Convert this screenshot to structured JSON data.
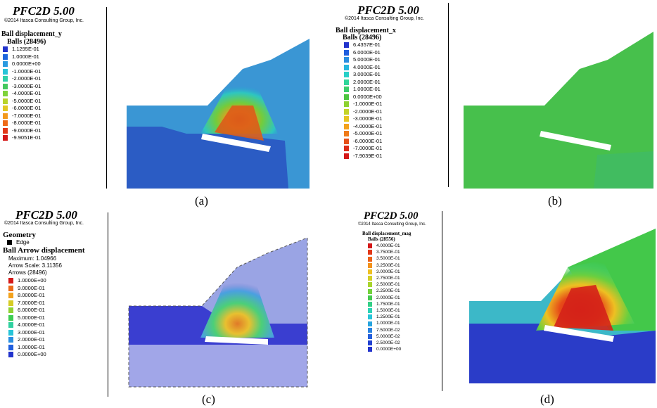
{
  "panels": [
    {
      "caption": "(a)",
      "software_title": "PFC2D 5.00",
      "copyright": "©2014 Itasca Consulting Group, Inc.",
      "variable": "Ball displacement_y",
      "count_label": "Balls (28496)",
      "legend": [
        {
          "label": "1.1295E-01",
          "color": "#2233cc"
        },
        {
          "label": "1.0000E-01",
          "color": "#1f66dd"
        },
        {
          "label": "0.0000E+00",
          "color": "#2a9ae0"
        },
        {
          "label": "-1.0000E-01",
          "color": "#27c4d8"
        },
        {
          "label": "-2.0000E-01",
          "color": "#2fd0a8"
        },
        {
          "label": "-3.0000E-01",
          "color": "#43c85e"
        },
        {
          "label": "-4.0000E-01",
          "color": "#7ed23a"
        },
        {
          "label": "-5.0000E-01",
          "color": "#b8d42b"
        },
        {
          "label": "-6.0000E-01",
          "color": "#e2c822"
        },
        {
          "label": "-7.0000E-01",
          "color": "#f39a1c"
        },
        {
          "label": "-8.0000E-01",
          "color": "#ef6a18"
        },
        {
          "label": "-9.0000E-01",
          "color": "#e23818"
        },
        {
          "label": "-9.9051E-01",
          "color": "#d41818"
        }
      ]
    },
    {
      "caption": "(b)",
      "software_title": "PFC2D 5.00",
      "copyright": "©2014 Itasca Consulting Group, Inc.",
      "variable": "Ball displacement_x",
      "count_label": "Balls (28496)",
      "legend": [
        {
          "label": "6.4357E-01",
          "color": "#2233cc"
        },
        {
          "label": "6.0000E-01",
          "color": "#1f5ede"
        },
        {
          "label": "5.0000E-01",
          "color": "#2a8ee0"
        },
        {
          "label": "4.0000E-01",
          "color": "#26b6de"
        },
        {
          "label": "3.0000E-01",
          "color": "#27d0c8"
        },
        {
          "label": "2.0000E-01",
          "color": "#2fd69a"
        },
        {
          "label": "1.0000E-01",
          "color": "#3ccd6a"
        },
        {
          "label": "0.0000E+00",
          "color": "#4cc640"
        },
        {
          "label": "-1.0000E-01",
          "color": "#8ed232"
        },
        {
          "label": "-2.0000E-01",
          "color": "#c4d428"
        },
        {
          "label": "-3.0000E-01",
          "color": "#e6c522"
        },
        {
          "label": "-4.0000E-01",
          "color": "#f3a21c"
        },
        {
          "label": "-5.0000E-01",
          "color": "#ef7a18"
        },
        {
          "label": "-6.0000E-01",
          "color": "#e65018"
        },
        {
          "label": "-7.0000E-01",
          "color": "#dc2c18"
        },
        {
          "label": "-7.9039E-01",
          "color": "#d41818"
        }
      ]
    },
    {
      "caption": "(c)",
      "software_title": "PFC2D 5.00",
      "copyright": "©2014 Itasca Consulting Group, Inc.",
      "geometry_label": "Geometry",
      "edge_label": "Edge",
      "variable": "Ball Arrow displacement",
      "maximum": "Maximum: 1.04966",
      "arrow_scale": "Arrow Scale: 3.11356",
      "count_label": "Arrows (28496)",
      "legend": [
        {
          "label": "1.0000E+00",
          "color": "#d41818"
        },
        {
          "label": "9.0000E-01",
          "color": "#ec6a18"
        },
        {
          "label": "8.0000E-01",
          "color": "#f3a21c"
        },
        {
          "label": "7.0000E-01",
          "color": "#d6cc24"
        },
        {
          "label": "6.0000E-01",
          "color": "#8ed232"
        },
        {
          "label": "5.0000E-01",
          "color": "#3ccd52"
        },
        {
          "label": "4.0000E-01",
          "color": "#2fd0a0"
        },
        {
          "label": "3.0000E-01",
          "color": "#27c4d8"
        },
        {
          "label": "2.0000E-01",
          "color": "#2a8ee0"
        },
        {
          "label": "1.0000E-01",
          "color": "#1f5ede"
        },
        {
          "label": "0.0000E+00",
          "color": "#2233cc"
        }
      ]
    },
    {
      "caption": "(d)",
      "software_title": "PFC2D 5.00",
      "copyright": "©2014 Itasca Consulting Group, Inc.",
      "variable": "Ball displacement_mag",
      "count_label": "Balls (28556)",
      "legend": [
        {
          "label": "4.0000E-01",
          "color": "#d41818"
        },
        {
          "label": "3.7500E-01",
          "color": "#e23818"
        },
        {
          "label": "3.5000E-01",
          "color": "#ec6218"
        },
        {
          "label": "3.2500E-01",
          "color": "#f3921c"
        },
        {
          "label": "3.0000E-01",
          "color": "#eec022"
        },
        {
          "label": "2.7500E-01",
          "color": "#d2cf26"
        },
        {
          "label": "2.5000E-01",
          "color": "#a8d42e"
        },
        {
          "label": "2.2500E-01",
          "color": "#72d23a"
        },
        {
          "label": "2.0000E-01",
          "color": "#45c94e"
        },
        {
          "label": "1.7500E-01",
          "color": "#34cf86"
        },
        {
          "label": "1.5000E-01",
          "color": "#2cd2b6"
        },
        {
          "label": "1.2500E-01",
          "color": "#27c4d8"
        },
        {
          "label": "1.0000E-01",
          "color": "#27a4de"
        },
        {
          "label": "7.5000E-02",
          "color": "#2a82e0"
        },
        {
          "label": "5.0000E-02",
          "color": "#2560dc"
        },
        {
          "label": "2.5000E-02",
          "color": "#2040d0"
        },
        {
          "label": "0.0000E+00",
          "color": "#2233cc"
        }
      ]
    }
  ]
}
